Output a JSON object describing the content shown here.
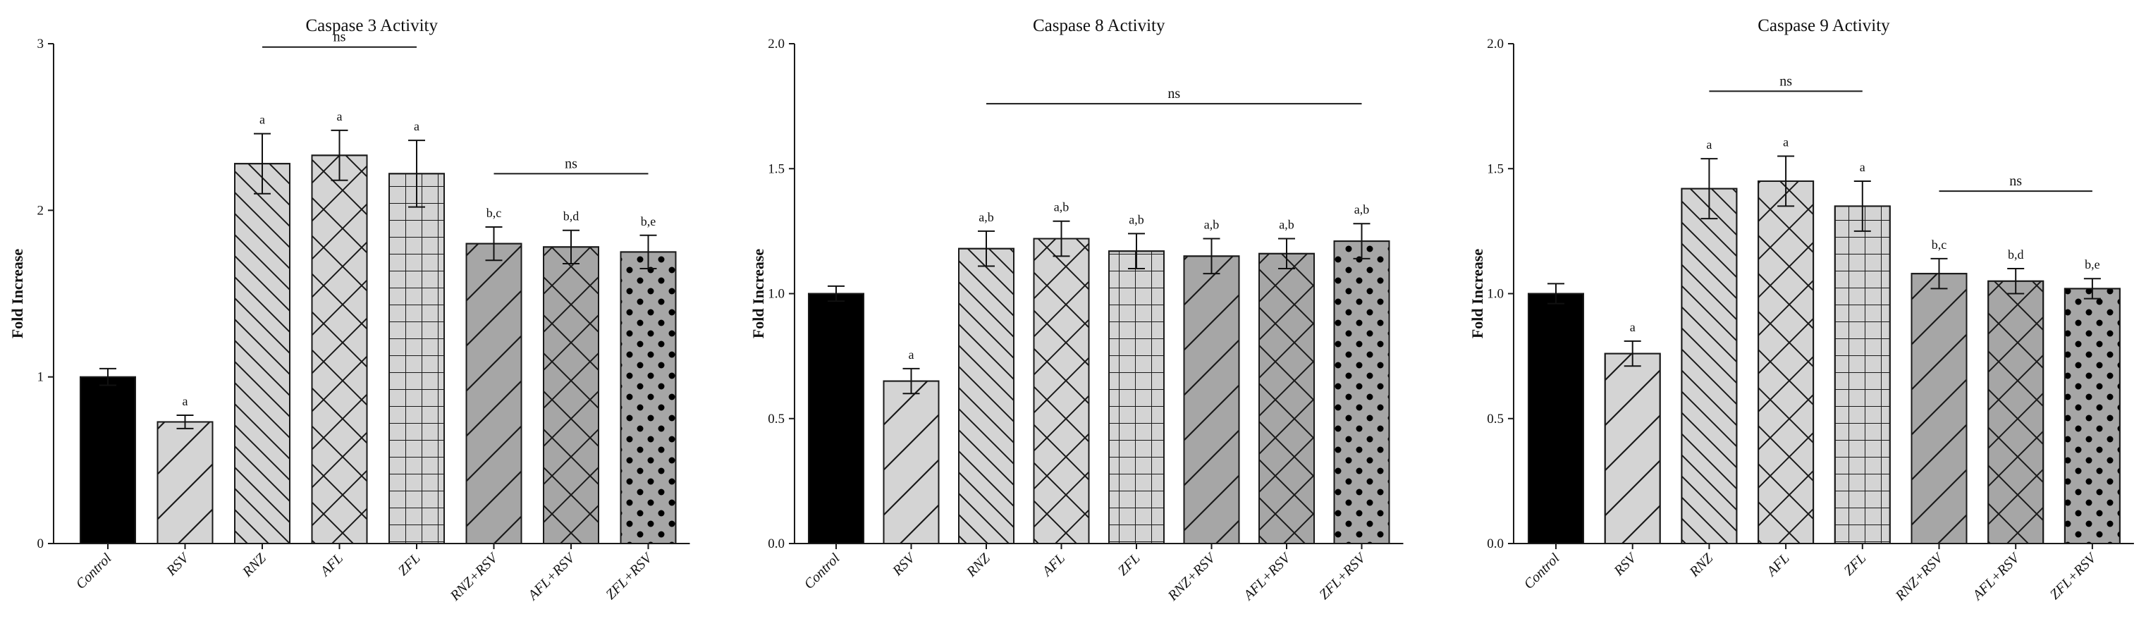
{
  "chart_data": [
    {
      "type": "bar",
      "title": "Caspase 3 Activity",
      "ylabel": "Fold Increase",
      "xlabel": "",
      "ylim": [
        0,
        3
      ],
      "yticks": [
        "0",
        "1",
        "2",
        "3"
      ],
      "categories": [
        "Control",
        "RSV",
        "RNZ",
        "AFL",
        "ZFL",
        "RNZ+RSV",
        "AFL+RSV",
        "ZFL+RSV"
      ],
      "values": [
        1.0,
        0.73,
        2.28,
        2.33,
        2.22,
        1.8,
        1.78,
        1.75
      ],
      "errors": [
        0.05,
        0.04,
        0.18,
        0.15,
        0.2,
        0.1,
        0.1,
        0.1
      ],
      "annotations": [
        "",
        "a",
        "a",
        "a",
        "a",
        "b,c",
        "b,d",
        "b,e"
      ],
      "significance": [
        {
          "from": 2,
          "to": 4,
          "y": 2.98,
          "label": "ns"
        },
        {
          "from": 5,
          "to": 7,
          "y": 2.22,
          "label": "ns"
        }
      ]
    },
    {
      "type": "bar",
      "title": "Caspase 8 Activity",
      "ylabel": "Fold Increase",
      "xlabel": "",
      "ylim": [
        0,
        2
      ],
      "yticks": [
        "0.0",
        "0.5",
        "1.0",
        "1.5",
        "2.0"
      ],
      "categories": [
        "Control",
        "RSV",
        "RNZ",
        "AFL",
        "ZFL",
        "RNZ+RSV",
        "AFL+RSV",
        "ZFL+RSV"
      ],
      "values": [
        1.0,
        0.65,
        1.18,
        1.22,
        1.17,
        1.15,
        1.16,
        1.21
      ],
      "errors": [
        0.03,
        0.05,
        0.07,
        0.07,
        0.07,
        0.07,
        0.06,
        0.07
      ],
      "annotations": [
        "",
        "a",
        "a,b",
        "a,b",
        "a,b",
        "a,b",
        "a,b",
        "a,b"
      ],
      "significance": [
        {
          "from": 2,
          "to": 7,
          "y": 1.76,
          "label": "ns"
        }
      ]
    },
    {
      "type": "bar",
      "title": "Caspase 9 Activity",
      "ylabel": "Fold Increase",
      "xlabel": "",
      "ylim": [
        0,
        2
      ],
      "yticks": [
        "0.0",
        "0.5",
        "1.0",
        "1.5",
        "2.0"
      ],
      "categories": [
        "Control",
        "RSV",
        "RNZ",
        "AFL",
        "ZFL",
        "RNZ+RSV",
        "AFL+RSV",
        "ZFL+RSV"
      ],
      "values": [
        1.0,
        0.76,
        1.42,
        1.45,
        1.35,
        1.08,
        1.05,
        1.02
      ],
      "errors": [
        0.04,
        0.05,
        0.12,
        0.1,
        0.1,
        0.06,
        0.05,
        0.04
      ],
      "annotations": [
        "",
        "a",
        "a",
        "a",
        "a",
        "b,c",
        "b,d",
        "b,e"
      ],
      "significance": [
        {
          "from": 2,
          "to": 4,
          "y": 1.81,
          "label": "ns"
        },
        {
          "from": 5,
          "to": 7,
          "y": 1.41,
          "label": "ns"
        }
      ]
    }
  ],
  "style": {
    "patterns": [
      "solid",
      "diag-up",
      "diag-down",
      "cross",
      "grid",
      "diag-up",
      "cross",
      "dots"
    ],
    "fills": [
      "#000000",
      "#d4d4d4",
      "#d4d4d4",
      "#d4d4d4",
      "#d4d4d4",
      "#a6a6a6",
      "#a6a6a6",
      "#a6a6a6"
    ],
    "stroke": "#1a1a1a"
  }
}
